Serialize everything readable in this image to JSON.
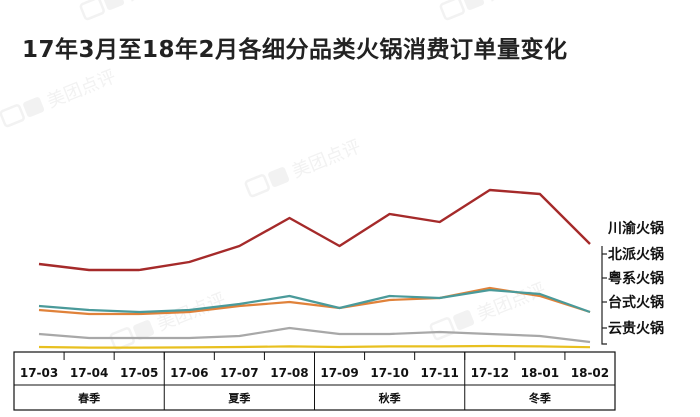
{
  "title": "17年3月至18年2月各细分品类火锅消费订单量变化",
  "watermark": "美团点评",
  "chart_data": {
    "type": "line",
    "title": "17年3月至18年2月各细分品类火锅消费订单量变化",
    "categories": [
      "17-03",
      "17-04",
      "17-05",
      "17-06",
      "17-07",
      "17-08",
      "17-09",
      "17-10",
      "17-11",
      "17-12",
      "18-01",
      "18-02"
    ],
    "seasons": [
      {
        "label": "春季",
        "months": [
          "17-03",
          "17-04",
          "17-05"
        ]
      },
      {
        "label": "夏季",
        "months": [
          "17-06",
          "17-07",
          "17-08"
        ]
      },
      {
        "label": "秋季",
        "months": [
          "17-09",
          "17-10",
          "17-11"
        ]
      },
      {
        "label": "冬季",
        "months": [
          "17-12",
          "18-01",
          "18-02"
        ]
      }
    ],
    "ylim": [
      0,
      100
    ],
    "series": [
      {
        "name": "川渝火锅",
        "color": "#a52a2a",
        "values": [
          43,
          40,
          40,
          44,
          52,
          66,
          52,
          68,
          64,
          80,
          78,
          53
        ]
      },
      {
        "name": "北派火锅",
        "color": "#4a9a9a",
        "values": [
          22,
          20,
          19,
          20,
          23,
          27,
          21,
          27,
          26,
          30,
          28,
          19
        ]
      },
      {
        "name": "粤系火锅",
        "color": "#e0823a",
        "values": [
          20,
          18,
          18,
          19,
          22,
          24,
          21,
          25,
          26,
          31,
          27,
          19
        ]
      },
      {
        "name": "台式火锅",
        "color": "#a8a8a8",
        "values": [
          8,
          6,
          6,
          6,
          7,
          11,
          8,
          8,
          9,
          8,
          7,
          4
        ]
      },
      {
        "name": "云贵火锅",
        "color": "#e8c020",
        "values": [
          1.5,
          1.2,
          1.2,
          1.3,
          1.5,
          1.8,
          1.5,
          1.8,
          1.8,
          2.0,
          1.8,
          1.4
        ]
      }
    ]
  }
}
